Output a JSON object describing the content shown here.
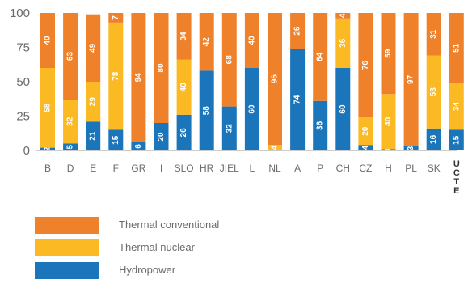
{
  "chart_data": {
    "type": "bar",
    "stacked": true,
    "categories": [
      "B",
      "D",
      "E",
      "F",
      "GR",
      "I",
      "SLO",
      "HR",
      "JIEL",
      "L",
      "NL",
      "A",
      "P",
      "CH",
      "CZ",
      "H",
      "PL",
      "SK",
      "UCTE"
    ],
    "ylim": [
      0,
      100
    ],
    "yticks": [
      0,
      25,
      50,
      75,
      100
    ],
    "grid": false,
    "legend_position": "bottom-left",
    "series": [
      {
        "name": "Hydropower",
        "color": "#1a75bb",
        "values": [
          2,
          5,
          21,
          15,
          6,
          20,
          26,
          58,
          32,
          60,
          0,
          74,
          36,
          60,
          4,
          1,
          3,
          16,
          15
        ]
      },
      {
        "name": "Thermal nuclear",
        "color": "#fbba23",
        "values": [
          58,
          32,
          29,
          78,
          0,
          0,
          40,
          0,
          0,
          0,
          4,
          0,
          0,
          36,
          20,
          40,
          0,
          53,
          34
        ]
      },
      {
        "name": "Thermal conventional",
        "color": "#f0812b",
        "values": [
          40,
          63,
          49,
          7,
          94,
          80,
          34,
          42,
          68,
          40,
          96,
          26,
          64,
          4,
          76,
          59,
          97,
          31,
          51
        ]
      }
    ]
  },
  "legend": [
    {
      "label": "Thermal conventional",
      "color": "#f0812b"
    },
    {
      "label": "Thermal nuclear",
      "color": "#fbba23"
    },
    {
      "label": "Hydropower",
      "color": "#1a75bb"
    }
  ]
}
